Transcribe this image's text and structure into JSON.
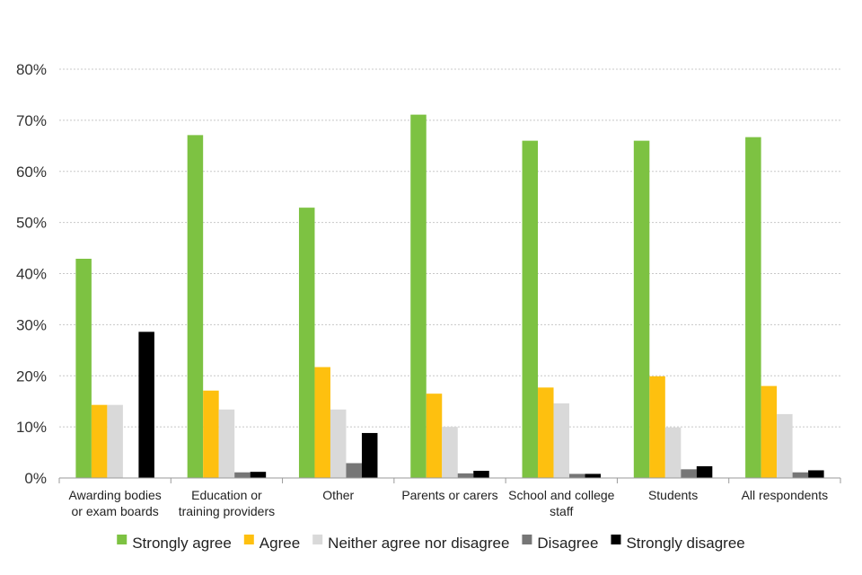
{
  "chart_data": {
    "type": "bar",
    "categories": [
      [
        "Awarding bodies",
        "or exam boards"
      ],
      [
        "Education or",
        "training providers"
      ],
      [
        "Other"
      ],
      [
        "Parents or carers"
      ],
      [
        "School and college",
        "staff"
      ],
      [
        "Students"
      ],
      [
        "All respondents"
      ]
    ],
    "series": [
      {
        "name": "Strongly agree",
        "color": "#7dc242",
        "values": [
          42.9,
          67.1,
          52.9,
          71.1,
          66.0,
          66.0,
          66.7
        ]
      },
      {
        "name": "Agree",
        "color": "#fec00f",
        "values": [
          14.3,
          17.1,
          21.7,
          16.5,
          17.7,
          19.9,
          18.0
        ]
      },
      {
        "name": "Neither agree nor disagree",
        "color": "#d9d9d9",
        "values": [
          14.3,
          13.4,
          13.4,
          10.0,
          14.6,
          9.9,
          12.5
        ]
      },
      {
        "name": "Disagree",
        "color": "#767676",
        "values": [
          0.0,
          1.1,
          2.9,
          0.9,
          0.8,
          1.7,
          1.1
        ]
      },
      {
        "name": "Strongly disagree",
        "color": "#000000",
        "values": [
          28.6,
          1.2,
          8.8,
          1.4,
          0.8,
          2.3,
          1.5
        ]
      }
    ],
    "yticks": [
      "0%",
      "10%",
      "20%",
      "30%",
      "40%",
      "50%",
      "60%",
      "70%",
      "80%"
    ],
    "ylim": [
      0,
      80
    ],
    "grid": true,
    "legend_position": "bottom"
  }
}
